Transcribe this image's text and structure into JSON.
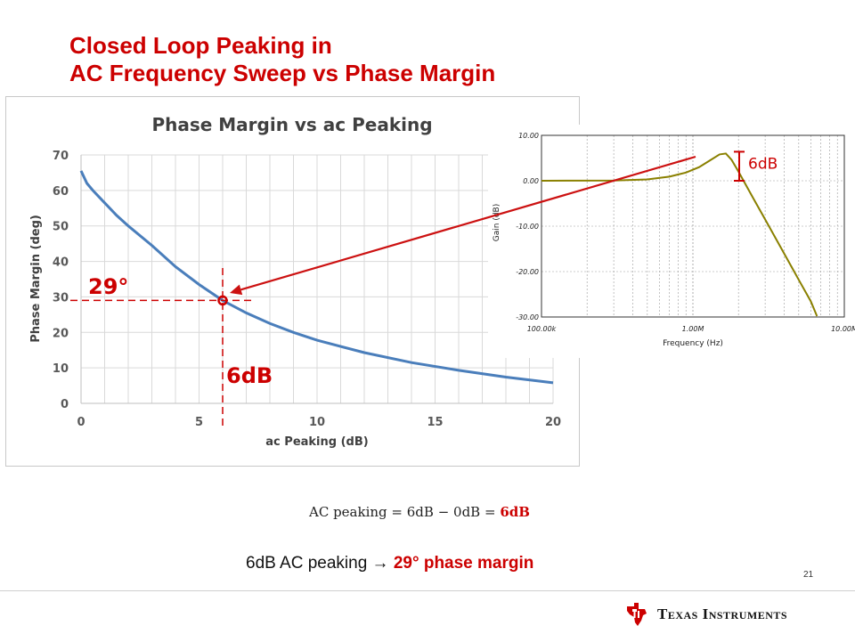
{
  "slide": {
    "title_line1": "Closed Loop Peaking in",
    "title_line2": "AC Frequency Sweep vs Phase Margin",
    "formula_prefix": "AC peaking = 6dB − 0dB = ",
    "formula_result": "6dB",
    "caption_prefix": "6dB AC peaking ",
    "caption_arrow": "→",
    "caption_highlight": "29° phase margin",
    "page_number": "21",
    "footer_company": "Texas Instruments"
  },
  "annotations": {
    "main_pm_label": "29°",
    "main_peak_label": "6dB",
    "inset_peak_label": "6dB"
  },
  "colors": {
    "accent_red": "#cc0000",
    "curve_blue": "#4a7ebb",
    "inset_curve": "#8a8000",
    "arrow_red": "#cc1111"
  },
  "chart_data": [
    {
      "type": "line",
      "title": "Phase Margin vs ac Peaking",
      "xlabel": "ac Peaking (dB)",
      "ylabel": "Phase Margin (deg)",
      "xlim": [
        0,
        20
      ],
      "ylim": [
        0,
        70
      ],
      "x_ticks": [
        0,
        5,
        10,
        15,
        20
      ],
      "y_ticks": [
        0,
        10,
        20,
        30,
        40,
        50,
        60,
        70
      ],
      "grid": true,
      "series": [
        {
          "x": [
            0,
            0.25,
            0.5,
            1,
            1.5,
            2,
            3,
            4,
            5,
            6,
            7,
            8,
            9,
            10,
            12,
            14,
            16,
            18,
            20
          ],
          "y": [
            65.5,
            62,
            60,
            56.5,
            53,
            50,
            44.5,
            38.5,
            33.5,
            29,
            25.5,
            22.5,
            20,
            17.8,
            14.3,
            11.5,
            9.3,
            7.4,
            5.8
          ]
        }
      ],
      "highlight_point": {
        "x": 6,
        "y": 29
      }
    },
    {
      "type": "line",
      "xlabel": "Frequency (Hz)",
      "ylabel": "Gain (dB)",
      "x_scale": "log",
      "xlim": [
        100000,
        10000000
      ],
      "ylim": [
        -30,
        10
      ],
      "x_tick_labels": [
        "100.00k",
        "1.00M",
        "10.00M"
      ],
      "y_tick_labels": [
        "10.00",
        "0.00",
        "-10.00",
        "-20.00",
        "-30.00"
      ],
      "y_ticks": [
        10,
        0,
        -10,
        -20,
        -30
      ],
      "grid": true,
      "series": [
        {
          "x": [
            100000,
            300000,
            500000,
            700000,
            900000,
            1100000,
            1300000,
            1500000,
            1650000,
            1800000,
            2000000,
            2500000,
            3000000,
            4000000,
            5000000,
            6000000,
            6600000
          ],
          "y": [
            0,
            0.05,
            0.3,
            0.9,
            1.8,
            3.0,
            4.5,
            5.8,
            6.0,
            4.6,
            2.0,
            -3.8,
            -8.5,
            -16.0,
            -21.8,
            -26.5,
            -29.8
          ]
        }
      ]
    }
  ]
}
